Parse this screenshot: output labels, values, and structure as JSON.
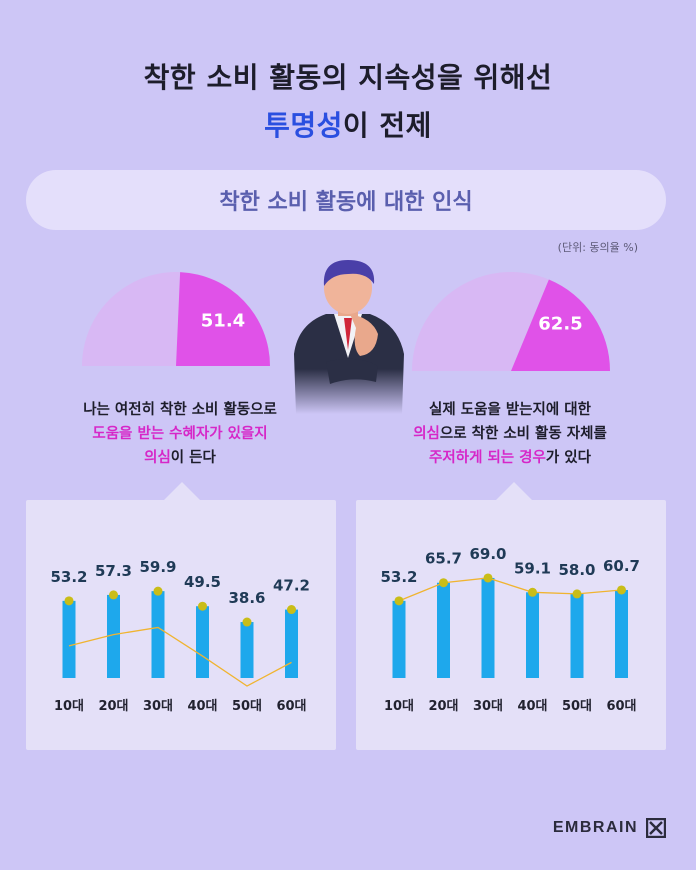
{
  "title": {
    "line1": "착한 소비 활동의 지속성을 위해선",
    "line2_accent": "투명성",
    "line2_rest": "이 전제"
  },
  "subtitle": "착한 소비 활동에 대한 인식",
  "unit": "(단위: 동의율 %)",
  "colors": {
    "background": "#cdc6f6",
    "magenta": "#e052e8",
    "light_purple": "#d8b8f4",
    "bar": "#1ea8ec",
    "dot": "#c9bd18",
    "line": "#f0b430",
    "accent_blue": "#2a4fe0",
    "highlight": "#d627c8"
  },
  "left": {
    "value": "51.4",
    "caption": {
      "l1": "나는 여전히 착한 소비 활동으로",
      "l2_h1": "도움을 받는 수혜자가 있을지",
      "l3_h": "의심",
      "l3_rest": "이 든다"
    }
  },
  "right": {
    "value": "62.5",
    "caption": {
      "l1": "실제 도움을 받는지에 대한",
      "l2_h": "의심",
      "l2_rest": "으로 착한 소비 활동 자체를",
      "l3_h": "주저하게 되는 경우",
      "l3_rest": "가 있다"
    }
  },
  "chart_data": [
    {
      "type": "bar",
      "categories": [
        "10대",
        "20대",
        "30대",
        "40대",
        "50대",
        "60대"
      ],
      "values": [
        53.2,
        57.3,
        59.9,
        49.5,
        38.6,
        47.2
      ],
      "ylim": [
        0,
        100
      ],
      "pie_value": 51.4
    },
    {
      "type": "bar",
      "categories": [
        "10대",
        "20대",
        "30대",
        "40대",
        "50대",
        "60대"
      ],
      "values": [
        53.2,
        65.7,
        69.0,
        59.1,
        58.0,
        60.7
      ],
      "ylim": [
        0,
        100
      ],
      "pie_value": 62.5
    }
  ],
  "logo": "EMBRAIN"
}
